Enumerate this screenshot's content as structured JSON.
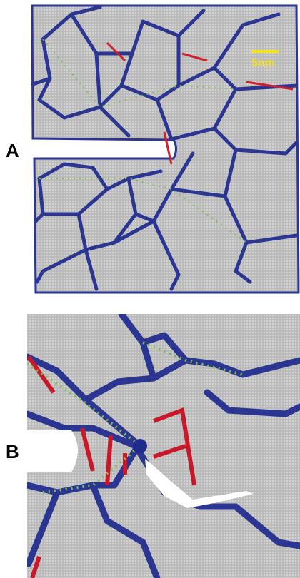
{
  "panels": [
    {
      "label": "A",
      "scale_bar": "5nm"
    },
    {
      "label": "B"
    }
  ]
}
